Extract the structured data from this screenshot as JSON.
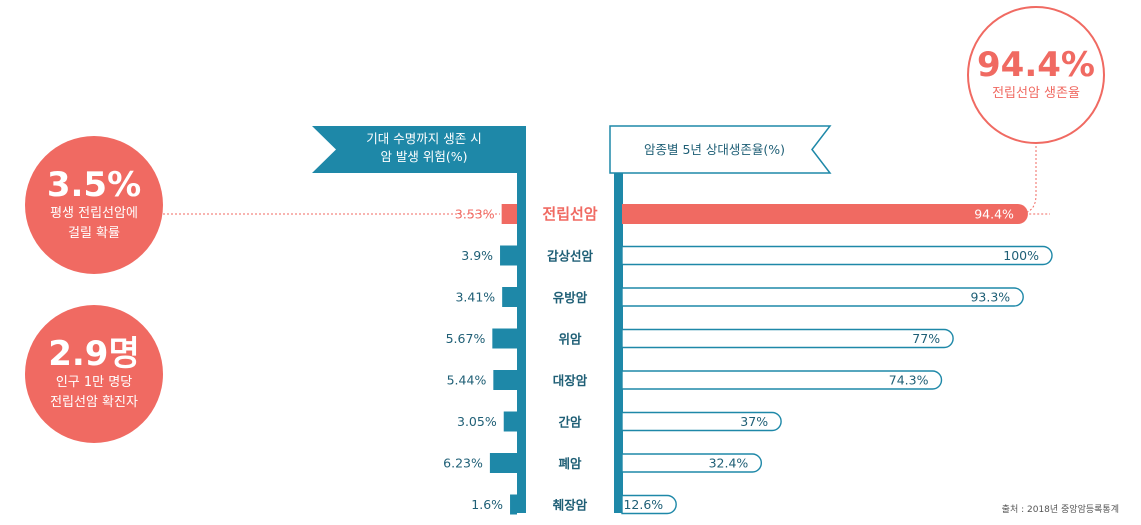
{
  "left_stats": [
    {
      "value": "3.5%",
      "caption": "평생 전립선암에\n걸릴 확률"
    },
    {
      "value": "2.9명",
      "caption": "인구 1만 명당\n전립선암 확진자"
    }
  ],
  "right_stat": {
    "value": "94.4%",
    "caption": "전립선암 생존율"
  },
  "left_banner": "기대 수명까지 생존 시\n암 발생 위험(%)",
  "right_banner": "암종별 5년 상대생존율(%)",
  "source": "출처 : 2018년 중앙암등록통계",
  "colors": {
    "accent": "#f06a62",
    "teal": "#1e88a8",
    "dark_teal": "#1f5f76"
  },
  "chart_data": {
    "type": "bar",
    "categories": [
      "전립선암",
      "갑상선암",
      "유방암",
      "위암",
      "대장암",
      "간암",
      "폐암",
      "췌장암"
    ],
    "highlight": "전립선암",
    "series": [
      {
        "name": "기대 수명까지 생존 시 암 발생 위험(%)",
        "values": [
          3.53,
          3.9,
          3.41,
          5.67,
          5.44,
          3.05,
          6.23,
          1.6
        ],
        "labels": [
          "3.53%",
          "3.9%",
          "3.41%",
          "5.67%",
          "5.44%",
          "3.05%",
          "6.23%",
          "1.6%"
        ]
      },
      {
        "name": "암종별 5년 상대생존율(%)",
        "values": [
          94.4,
          100,
          93.3,
          77,
          74.3,
          37,
          32.4,
          12.6
        ],
        "labels": [
          "94.4%",
          "100%",
          "93.3%",
          "77%",
          "74.3%",
          "37%",
          "32.4%",
          "12.6%"
        ]
      }
    ]
  }
}
